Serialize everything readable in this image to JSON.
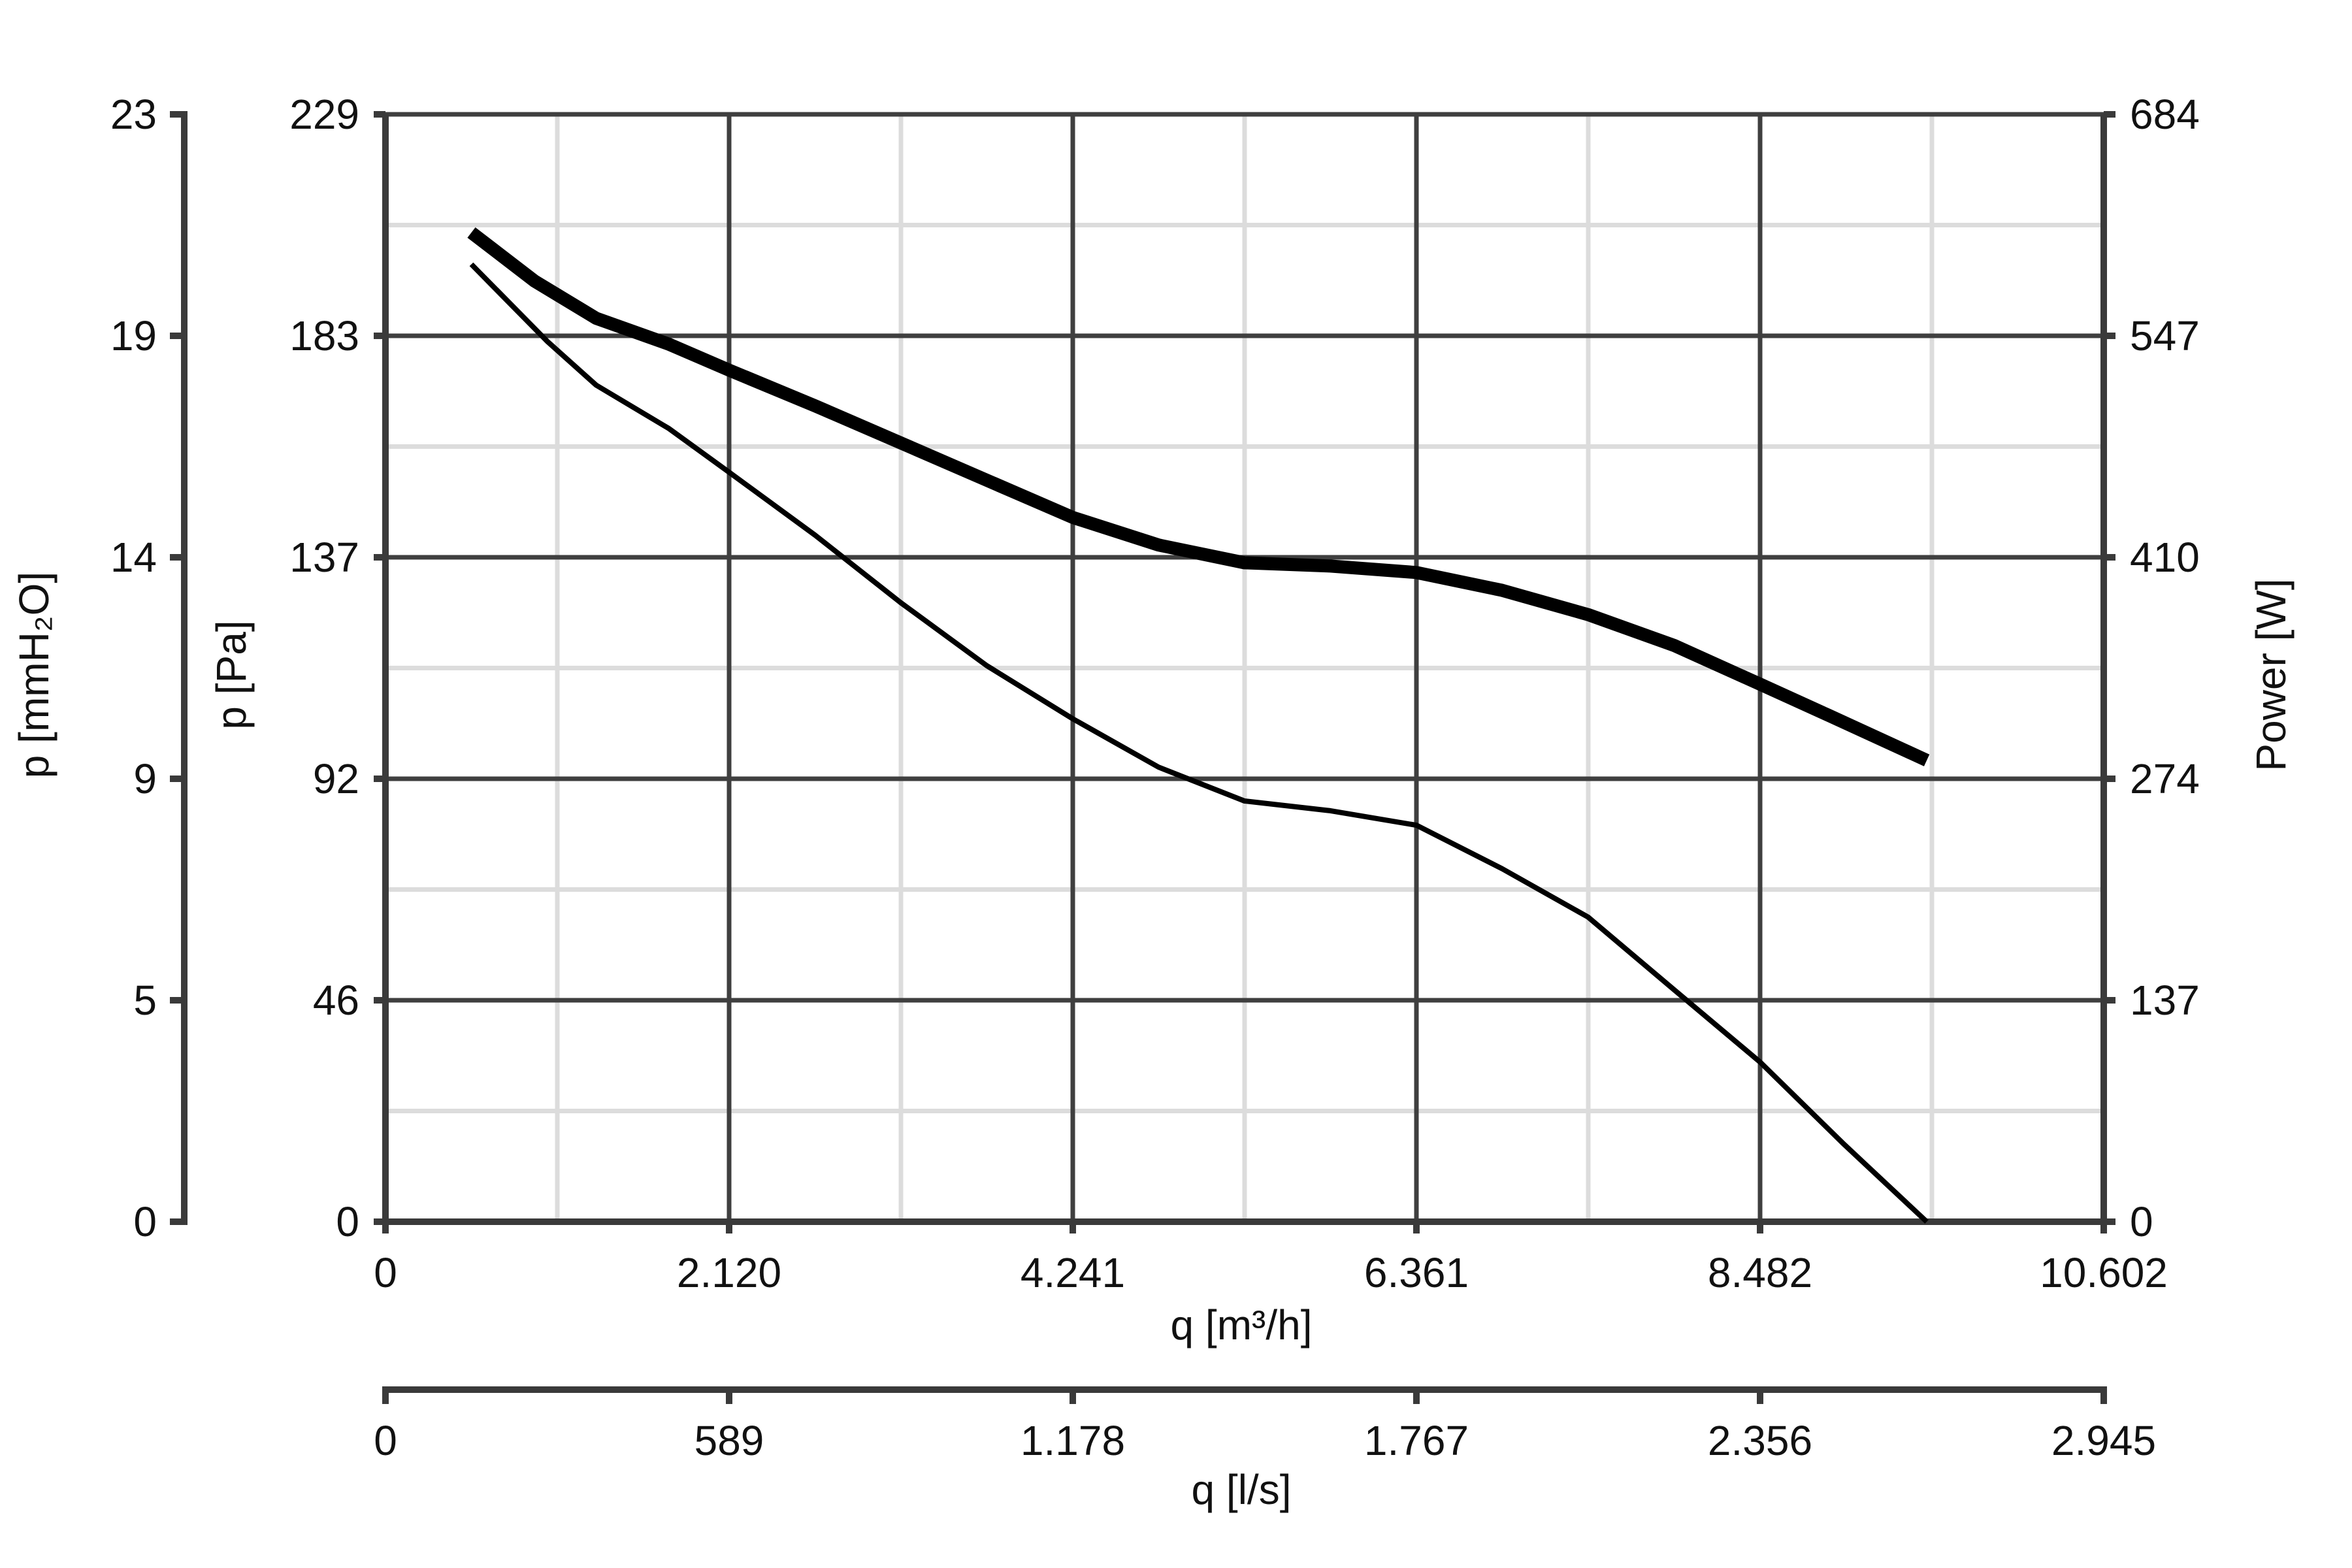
{
  "chart_data": {
    "type": "line",
    "x_unit_label": "q [m³/h]",
    "x_ticks": [
      "0",
      "2.120",
      "4.241",
      "6.361",
      "8.482",
      "10.602"
    ],
    "xlim": [
      0,
      10602
    ],
    "secondary_x_label": "q [l/s]",
    "secondary_x_ticks": [
      "0",
      "589",
      "1.178",
      "1.767",
      "2.356",
      "2.945"
    ],
    "y_label": "p [Pa]",
    "y_ticks": [
      "0",
      "46",
      "92",
      "137",
      "183",
      "229"
    ],
    "ylim": [
      0,
      229
    ],
    "left_outer_y_label": "p [mmH₂O]",
    "left_outer_y_ticks": [
      "0",
      "5",
      "9",
      "14",
      "19",
      "23"
    ],
    "right_y_label": "Power [W]",
    "right_y_ticks": [
      "0",
      "137",
      "274",
      "410",
      "547",
      "684"
    ],
    "right_ylim": [
      0,
      684
    ],
    "grid": true,
    "series": [
      {
        "axis": "right",
        "style": "thick",
        "points": [
          [
            530,
            611
          ],
          [
            920,
            581
          ],
          [
            1300,
            558
          ],
          [
            1750,
            542
          ],
          [
            2120,
            526
          ],
          [
            2650,
            504
          ],
          [
            3180,
            481
          ],
          [
            3710,
            458
          ],
          [
            4241,
            435
          ],
          [
            4770,
            418
          ],
          [
            5300,
            407
          ],
          [
            5830,
            405
          ],
          [
            6361,
            401
          ],
          [
            6890,
            390
          ],
          [
            7420,
            375
          ],
          [
            7950,
            356
          ],
          [
            8482,
            332
          ],
          [
            8900,
            313
          ],
          [
            9510,
            285
          ]
        ]
      },
      {
        "axis": "left",
        "style": "thin",
        "points": [
          [
            530,
            198
          ],
          [
            1000,
            182
          ],
          [
            1300,
            173
          ],
          [
            1750,
            164
          ],
          [
            2120,
            155
          ],
          [
            2650,
            142
          ],
          [
            3180,
            128
          ],
          [
            3710,
            115
          ],
          [
            4241,
            104
          ],
          [
            4770,
            94
          ],
          [
            5300,
            87
          ],
          [
            5830,
            85
          ],
          [
            6361,
            82
          ],
          [
            6890,
            73
          ],
          [
            7420,
            63
          ],
          [
            7950,
            48
          ],
          [
            8482,
            33
          ],
          [
            9000,
            16
          ],
          [
            9510,
            0
          ]
        ]
      }
    ]
  }
}
